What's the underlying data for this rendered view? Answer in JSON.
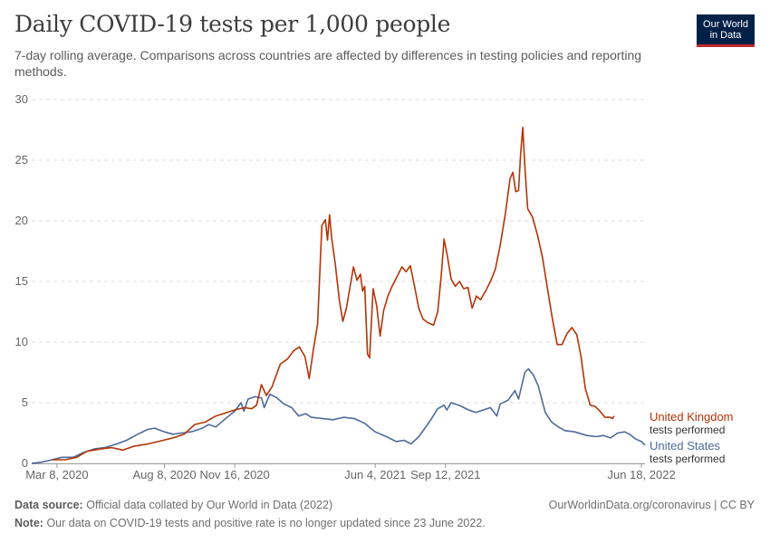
{
  "header": {
    "title": "Daily COVID-19 tests per 1,000 people",
    "subtitle": "7-day rolling average. Comparisons across countries are affected by differences in testing policies and reporting methods."
  },
  "logo": {
    "line1": "Our World",
    "line2": "in Data",
    "bg_color": "#002147",
    "accent_color": "#c2272d"
  },
  "footer": {
    "source_label": "Data source:",
    "source_text": "Official data collated by Our World in Data (2022)",
    "url_text": "OurWorldinData.org/coronavirus | CC BY",
    "note_label": "Note:",
    "note_text": "Our data on COVID-19 tests and positive rate is no longer updated since 23 June 2022."
  },
  "chart_data": {
    "type": "line",
    "x_range": [
      "2020-02-01",
      "2022-06-23"
    ],
    "ylim": [
      0,
      30
    ],
    "yticks": [
      0,
      5,
      10,
      15,
      20,
      25,
      30
    ],
    "xticks": [
      {
        "date": "2020-03-08",
        "label": "Mar 8, 2020"
      },
      {
        "date": "2020-08-08",
        "label": "Aug 8, 2020"
      },
      {
        "date": "2020-11-16",
        "label": "Nov 16, 2020"
      },
      {
        "date": "2021-06-04",
        "label": "Jun 4, 2021"
      },
      {
        "date": "2021-09-12",
        "label": "Sep 12, 2021"
      },
      {
        "date": "2022-06-18",
        "label": "Jun 18, 2022"
      }
    ],
    "grid": true,
    "series": [
      {
        "name": "United Kingdom",
        "sublabel": "tests performed",
        "color": "#b13507",
        "points": [
          [
            "2020-03-01",
            0.3
          ],
          [
            "2020-03-20",
            0.3
          ],
          [
            "2020-04-05",
            0.5
          ],
          [
            "2020-04-20",
            1.0
          ],
          [
            "2020-05-10",
            1.2
          ],
          [
            "2020-05-25",
            1.3
          ],
          [
            "2020-06-10",
            1.1
          ],
          [
            "2020-06-25",
            1.4
          ],
          [
            "2020-07-15",
            1.6
          ],
          [
            "2020-07-30",
            1.8
          ],
          [
            "2020-08-20",
            2.1
          ],
          [
            "2020-09-05",
            2.4
          ],
          [
            "2020-09-20",
            3.2
          ],
          [
            "2020-10-05",
            3.4
          ],
          [
            "2020-10-20",
            3.9
          ],
          [
            "2020-11-05",
            4.2
          ],
          [
            "2020-11-16",
            4.4
          ],
          [
            "2020-11-30",
            4.6
          ],
          [
            "2020-12-10",
            4.5
          ],
          [
            "2020-12-17",
            4.8
          ],
          [
            "2020-12-24",
            6.5
          ],
          [
            "2020-12-31",
            5.6
          ],
          [
            "2021-01-08",
            6.3
          ],
          [
            "2021-01-20",
            8.2
          ],
          [
            "2021-01-30",
            8.6
          ],
          [
            "2021-02-08",
            9.3
          ],
          [
            "2021-02-16",
            9.6
          ],
          [
            "2021-02-24",
            8.8
          ],
          [
            "2021-03-02",
            7.0
          ],
          [
            "2021-03-08",
            9.4
          ],
          [
            "2021-03-14",
            11.5
          ],
          [
            "2021-03-20",
            19.6
          ],
          [
            "2021-03-25",
            20.1
          ],
          [
            "2021-03-28",
            18.4
          ],
          [
            "2021-03-31",
            20.5
          ],
          [
            "2021-04-03",
            18.6
          ],
          [
            "2021-04-08",
            16.5
          ],
          [
            "2021-04-14",
            13.4
          ],
          [
            "2021-04-19",
            11.7
          ],
          [
            "2021-04-24",
            12.8
          ],
          [
            "2021-04-29",
            14.5
          ],
          [
            "2021-05-04",
            16.2
          ],
          [
            "2021-05-09",
            15.1
          ],
          [
            "2021-05-14",
            15.6
          ],
          [
            "2021-05-17",
            14.2
          ],
          [
            "2021-05-20",
            14.6
          ],
          [
            "2021-05-24",
            9.0
          ],
          [
            "2021-05-27",
            8.7
          ],
          [
            "2021-06-01",
            14.4
          ],
          [
            "2021-06-06",
            13.0
          ],
          [
            "2021-06-11",
            10.5
          ],
          [
            "2021-06-16",
            12.6
          ],
          [
            "2021-06-22",
            13.8
          ],
          [
            "2021-06-28",
            14.6
          ],
          [
            "2021-07-05",
            15.4
          ],
          [
            "2021-07-12",
            16.2
          ],
          [
            "2021-07-18",
            15.8
          ],
          [
            "2021-07-24",
            16.3
          ],
          [
            "2021-07-30",
            14.6
          ],
          [
            "2021-08-05",
            12.8
          ],
          [
            "2021-08-11",
            11.9
          ],
          [
            "2021-08-18",
            11.6
          ],
          [
            "2021-08-26",
            11.4
          ],
          [
            "2021-09-01",
            12.5
          ],
          [
            "2021-09-06",
            15.5
          ],
          [
            "2021-09-10",
            18.5
          ],
          [
            "2021-09-15",
            17.0
          ],
          [
            "2021-09-20",
            15.2
          ],
          [
            "2021-09-26",
            14.6
          ],
          [
            "2021-10-02",
            15.0
          ],
          [
            "2021-10-08",
            14.4
          ],
          [
            "2021-10-14",
            14.5
          ],
          [
            "2021-10-20",
            12.8
          ],
          [
            "2021-10-26",
            13.8
          ],
          [
            "2021-11-01",
            13.5
          ],
          [
            "2021-11-08",
            14.2
          ],
          [
            "2021-11-15",
            15.0
          ],
          [
            "2021-11-22",
            16.0
          ],
          [
            "2021-11-29",
            18.0
          ],
          [
            "2021-12-06",
            20.5
          ],
          [
            "2021-12-13",
            23.5
          ],
          [
            "2021-12-17",
            24.0
          ],
          [
            "2021-12-21",
            22.4
          ],
          [
            "2021-12-25",
            22.5
          ],
          [
            "2021-12-28",
            25.5
          ],
          [
            "2021-12-31",
            27.7
          ],
          [
            "2022-01-03",
            24.5
          ],
          [
            "2022-01-07",
            21.0
          ],
          [
            "2022-01-14",
            20.3
          ],
          [
            "2022-01-21",
            18.8
          ],
          [
            "2022-01-28",
            17.0
          ],
          [
            "2022-02-04",
            14.5
          ],
          [
            "2022-02-11",
            12.0
          ],
          [
            "2022-02-18",
            9.8
          ],
          [
            "2022-02-25",
            9.8
          ],
          [
            "2022-03-04",
            10.7
          ],
          [
            "2022-03-11",
            11.2
          ],
          [
            "2022-03-18",
            10.6
          ],
          [
            "2022-03-24",
            8.8
          ],
          [
            "2022-03-30",
            6.2
          ],
          [
            "2022-04-06",
            4.8
          ],
          [
            "2022-04-13",
            4.7
          ],
          [
            "2022-04-20",
            4.3
          ],
          [
            "2022-04-27",
            3.8
          ],
          [
            "2022-05-04",
            3.8
          ],
          [
            "2022-05-08",
            3.7
          ],
          [
            "2022-05-10",
            3.9
          ]
        ]
      },
      {
        "name": "United States",
        "sublabel": "tests performed",
        "color": "#4c6a9c",
        "points": [
          [
            "2020-02-01",
            0.0
          ],
          [
            "2020-02-15",
            0.1
          ],
          [
            "2020-03-01",
            0.3
          ],
          [
            "2020-03-15",
            0.5
          ],
          [
            "2020-03-31",
            0.5
          ],
          [
            "2020-04-15",
            0.9
          ],
          [
            "2020-05-01",
            1.2
          ],
          [
            "2020-05-15",
            1.3
          ],
          [
            "2020-06-01",
            1.6
          ],
          [
            "2020-06-15",
            1.9
          ],
          [
            "2020-07-01",
            2.4
          ],
          [
            "2020-07-15",
            2.8
          ],
          [
            "2020-07-25",
            2.9
          ],
          [
            "2020-08-08",
            2.6
          ],
          [
            "2020-08-20",
            2.4
          ],
          [
            "2020-09-01",
            2.5
          ],
          [
            "2020-09-15",
            2.6
          ],
          [
            "2020-10-01",
            2.9
          ],
          [
            "2020-10-10",
            3.2
          ],
          [
            "2020-10-20",
            3.0
          ],
          [
            "2020-11-01",
            3.6
          ],
          [
            "2020-11-16",
            4.3
          ],
          [
            "2020-11-25",
            5.0
          ],
          [
            "2020-11-29",
            4.3
          ],
          [
            "2020-12-05",
            5.3
          ],
          [
            "2020-12-15",
            5.5
          ],
          [
            "2020-12-24",
            5.4
          ],
          [
            "2020-12-28",
            4.6
          ],
          [
            "2021-01-05",
            5.7
          ],
          [
            "2021-01-15",
            5.4
          ],
          [
            "2021-01-25",
            4.9
          ],
          [
            "2021-02-05",
            4.6
          ],
          [
            "2021-02-15",
            3.9
          ],
          [
            "2021-02-25",
            4.1
          ],
          [
            "2021-03-05",
            3.8
          ],
          [
            "2021-03-20",
            3.7
          ],
          [
            "2021-04-05",
            3.6
          ],
          [
            "2021-04-20",
            3.8
          ],
          [
            "2021-05-05",
            3.7
          ],
          [
            "2021-05-20",
            3.3
          ],
          [
            "2021-06-04",
            2.6
          ],
          [
            "2021-06-20",
            2.2
          ],
          [
            "2021-07-04",
            1.8
          ],
          [
            "2021-07-15",
            1.9
          ],
          [
            "2021-07-25",
            1.6
          ],
          [
            "2021-08-05",
            2.2
          ],
          [
            "2021-08-20",
            3.4
          ],
          [
            "2021-09-01",
            4.5
          ],
          [
            "2021-09-10",
            4.8
          ],
          [
            "2021-09-14",
            4.4
          ],
          [
            "2021-09-20",
            5.0
          ],
          [
            "2021-10-01",
            4.8
          ],
          [
            "2021-10-15",
            4.4
          ],
          [
            "2021-10-25",
            4.2
          ],
          [
            "2021-11-05",
            4.4
          ],
          [
            "2021-11-15",
            4.6
          ],
          [
            "2021-11-24",
            3.9
          ],
          [
            "2021-11-29",
            4.9
          ],
          [
            "2021-12-10",
            5.2
          ],
          [
            "2021-12-20",
            6.0
          ],
          [
            "2021-12-25",
            5.3
          ],
          [
            "2022-01-03",
            7.5
          ],
          [
            "2022-01-08",
            7.8
          ],
          [
            "2022-01-15",
            7.3
          ],
          [
            "2022-01-22",
            6.4
          ],
          [
            "2022-02-01",
            4.2
          ],
          [
            "2022-02-10",
            3.4
          ],
          [
            "2022-02-20",
            3.0
          ],
          [
            "2022-03-01",
            2.7
          ],
          [
            "2022-03-15",
            2.6
          ],
          [
            "2022-04-01",
            2.3
          ],
          [
            "2022-04-15",
            2.2
          ],
          [
            "2022-04-25",
            2.3
          ],
          [
            "2022-05-05",
            2.1
          ],
          [
            "2022-05-15",
            2.5
          ],
          [
            "2022-05-25",
            2.6
          ],
          [
            "2022-06-01",
            2.4
          ],
          [
            "2022-06-10",
            2.0
          ],
          [
            "2022-06-18",
            1.8
          ],
          [
            "2022-06-23",
            1.5
          ]
        ]
      }
    ]
  }
}
